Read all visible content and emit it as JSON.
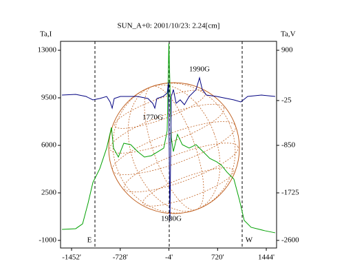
{
  "chart_data": {
    "type": "line",
    "title": "SUN_A+0: 2001/10/23: 2.24[cm]",
    "y_label": "Ta,I",
    "y2_label": "Ta,V",
    "annotations": [
      "1990G",
      "1770G",
      "1980G",
      "E",
      "W"
    ],
    "xlim": [
      -1616,
      1597
    ],
    "xticks": [
      {
        "value": -1452,
        "label": "-1452'"
      },
      {
        "value": -728,
        "label": "-728'"
      },
      {
        "value": -4,
        "label": "-4'"
      },
      {
        "value": 720,
        "label": "720'"
      },
      {
        "value": 1444,
        "label": "1444'"
      }
    ],
    "ylim": [
      -1560,
      13660
    ],
    "yticks": [
      -1000,
      2500,
      6000,
      9500,
      13000
    ],
    "y2lim": [
      -2740,
      1065
    ],
    "y2ticks": [
      -2600,
      -1725,
      -850,
      -25,
      900
    ],
    "series": [
      {
        "color": "#00a000",
        "axis": "y",
        "x": [
          -1595,
          -1391,
          -1288,
          -1207,
          -1135,
          -1033,
          -930,
          -859,
          -828,
          -756,
          -675,
          -572,
          -470,
          -368,
          -265,
          -163,
          -81,
          -30,
          -5,
          31,
          62,
          123,
          195,
          297,
          400,
          502,
          604,
          707,
          778,
          860,
          962,
          1044,
          1116,
          1218,
          1423,
          1576
        ],
        "values": [
          -188,
          -137,
          219,
          1740,
          3262,
          4276,
          5798,
          7320,
          5798,
          5138,
          6153,
          6051,
          5544,
          5138,
          5240,
          5544,
          5798,
          7066,
          13507,
          6559,
          5544,
          6812,
          6051,
          5798,
          6051,
          5544,
          5036,
          4783,
          4529,
          4022,
          3515,
          1994,
          472,
          -35,
          -289,
          -441
        ]
      },
      {
        "color": "#000080",
        "axis": "y2",
        "x": [
          -1595,
          -1391,
          -1237,
          -1135,
          -1033,
          -930,
          -879,
          -848,
          -818,
          -726,
          -623,
          -470,
          -316,
          -245,
          -214,
          -183,
          -91,
          -30,
          -10,
          11,
          31,
          62,
          103,
          164,
          226,
          297,
          400,
          451,
          492,
          553,
          707,
          860,
          962,
          1065,
          1167,
          1371,
          1576
        ],
        "values": [
          76,
          88,
          50,
          -13,
          12,
          50,
          -51,
          -165,
          12,
          50,
          50,
          50,
          12,
          -76,
          -165,
          12,
          50,
          114,
          304,
          -2232,
          50,
          177,
          -76,
          -13,
          -102,
          50,
          177,
          393,
          177,
          76,
          50,
          12,
          -13,
          -51,
          50,
          76,
          50
        ]
      }
    ]
  }
}
